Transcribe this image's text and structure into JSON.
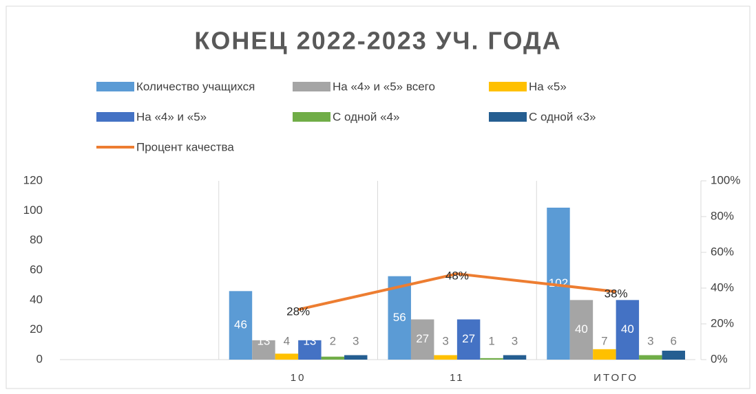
{
  "chart_data": {
    "type": "bar",
    "title": "КОНЕЦ 2022-2023 УЧ. ГОДА",
    "categories": [
      null,
      "10",
      "11",
      "ИТОГО"
    ],
    "series": [
      {
        "name": "Количество учащихся",
        "color": "#5B9BD5",
        "values": [
          null,
          46,
          56,
          102
        ]
      },
      {
        "name": "На «4» и «5» всего",
        "color": "#A5A5A5",
        "values": [
          null,
          13,
          27,
          40
        ]
      },
      {
        "name": "На «5»",
        "color": "#FFC000",
        "values": [
          null,
          4,
          3,
          7
        ]
      },
      {
        "name": "На «4» и «5»",
        "color": "#4472C4",
        "values": [
          null,
          13,
          27,
          40
        ]
      },
      {
        "name": "С одной «4»",
        "color": "#70AD47",
        "values": [
          null,
          2,
          1,
          3
        ]
      },
      {
        "name": "С одной «3»",
        "color": "#255E91",
        "values": [
          null,
          3,
          3,
          6
        ]
      },
      {
        "name": "Процент качества",
        "color": "#ED7D31",
        "type": "line",
        "axis": "y2",
        "values": [
          null,
          28,
          48,
          38
        ],
        "value_labels": [
          null,
          "28%",
          "48%",
          "38%"
        ]
      }
    ],
    "ylim": [
      0,
      120
    ],
    "yticks": [
      0,
      20,
      40,
      60,
      80,
      100,
      120
    ],
    "y2lim": [
      0,
      100
    ],
    "y2ticks": [
      {
        "value": 0,
        "label": "0%"
      },
      {
        "value": 20,
        "label": "20%"
      },
      {
        "value": 40,
        "label": "40%"
      },
      {
        "value": 60,
        "label": "60%"
      },
      {
        "value": 80,
        "label": "80%"
      },
      {
        "value": 100,
        "label": "100%"
      }
    ]
  }
}
